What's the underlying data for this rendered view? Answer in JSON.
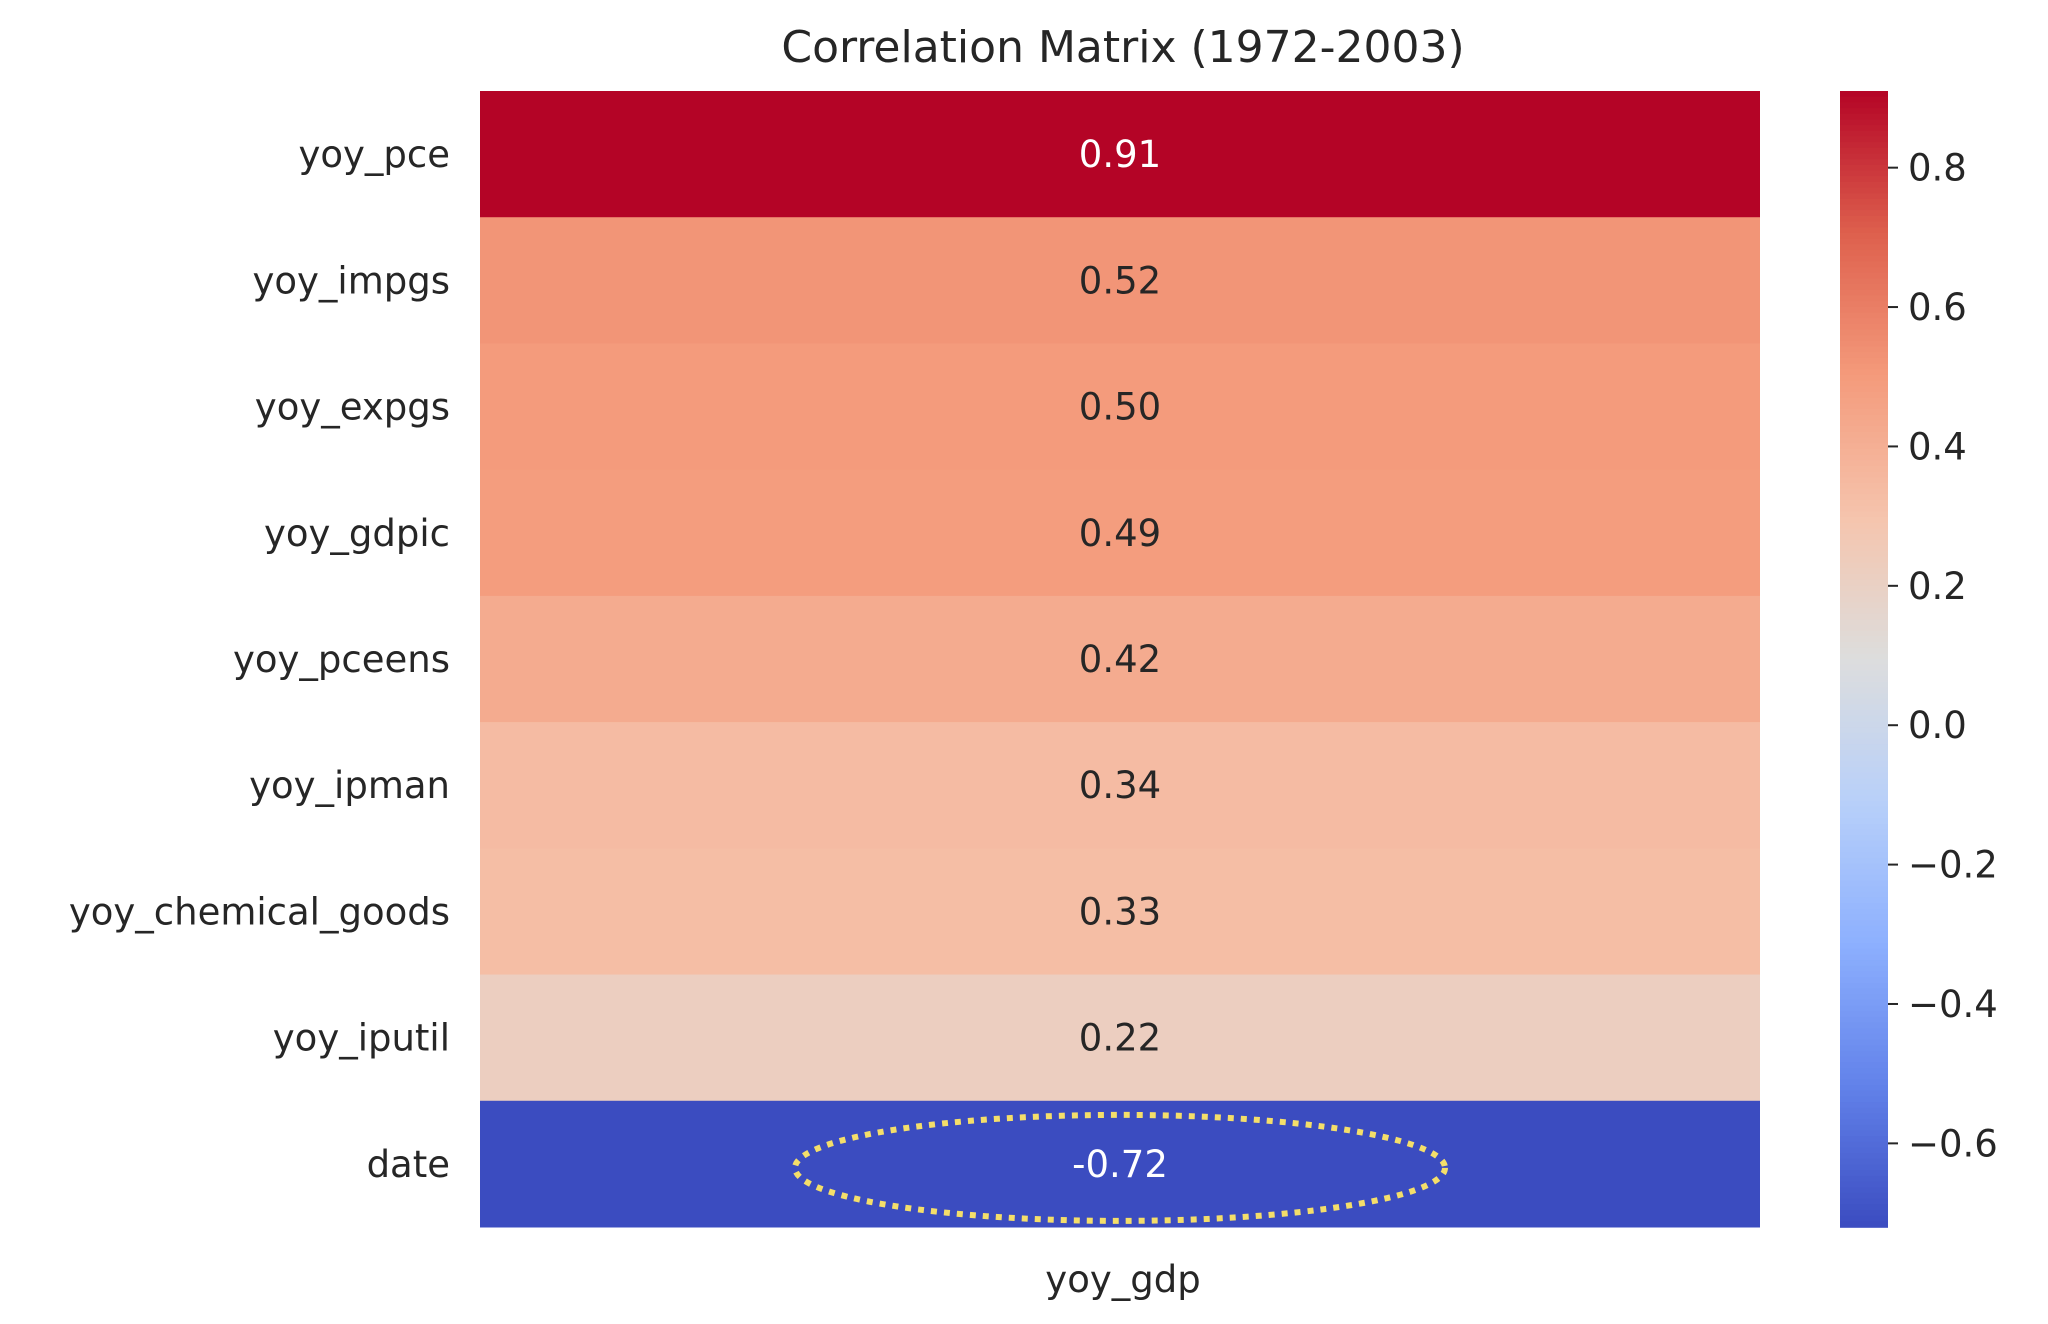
{
  "chart_data": {
    "type": "heatmap",
    "title": "Correlation Matrix (1972-2003)",
    "columns": [
      "yoy_gdp"
    ],
    "rows": [
      "yoy_pce",
      "yoy_impgs",
      "yoy_expgs",
      "yoy_gdpic",
      "yoy_pceens",
      "yoy_ipman",
      "yoy_chemical_goods",
      "yoy_iputil",
      "date"
    ],
    "values": [
      0.91,
      0.52,
      0.5,
      0.49,
      0.42,
      0.34,
      0.33,
      0.22,
      -0.72
    ],
    "value_labels": [
      "0.91",
      "0.52",
      "0.50",
      "0.49",
      "0.42",
      "0.34",
      "0.33",
      "0.22",
      "-0.72"
    ],
    "colormap": "coolwarm",
    "vmin": -0.72,
    "vmax": 0.91,
    "colorbar": {
      "ticks": [
        0.8,
        0.6,
        0.4,
        0.2,
        0.0,
        -0.2,
        -0.4,
        -0.6
      ],
      "tick_labels": [
        "0.8",
        "0.6",
        "0.4",
        "0.2",
        "0.0",
        "−0.2",
        "−0.4",
        "−0.6"
      ]
    },
    "highlight": {
      "row": "date",
      "style": "dotted ellipse",
      "color": "#f4de6a"
    },
    "colors": {
      "cool": "#3b4cc0",
      "neutral": "#dddddd",
      "warm": "#b40426",
      "text": "#262626"
    }
  }
}
